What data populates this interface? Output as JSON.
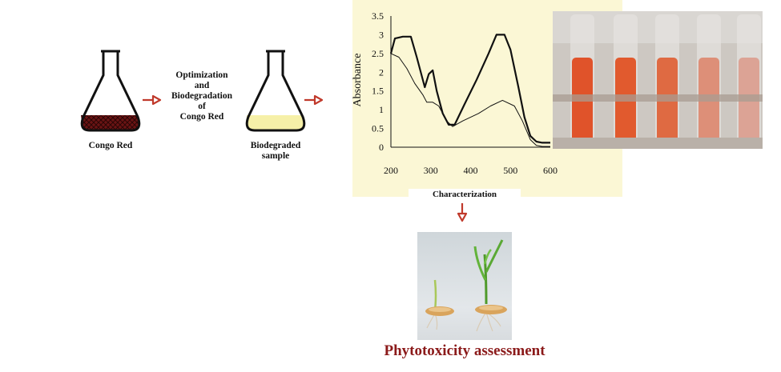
{
  "flow": {
    "congo_red_label": "Congo Red",
    "step_label_lines": [
      "Optimization",
      "and",
      "Biodegradation",
      "of",
      "Congo Red"
    ],
    "biodegraded_label_lines": [
      "Biodegraded",
      "sample"
    ],
    "characterization_label": "Characterization",
    "phytotoxicity_label": "Phytotoxicity assessment"
  },
  "colors": {
    "arrow": "#c0392b",
    "congo_red_liquid": "#6b1414",
    "biodegraded_liquid": "#f6f0a8",
    "chart_bg": "#fbf7d5",
    "phytotoxicity_text": "#8b1a1a"
  },
  "chart_data": {
    "type": "line",
    "ylabel": "Absorbance",
    "xlabel": "",
    "xlim": [
      200,
      600
    ],
    "ylim": [
      0,
      3.5
    ],
    "x_ticks": [
      "200",
      "300",
      "400",
      "500",
      "600"
    ],
    "y_ticks": [
      "0",
      "0.5",
      "1",
      "1.5",
      "2",
      "2.5",
      "3",
      "3.5"
    ],
    "series": [
      {
        "style": "thick",
        "points": [
          [
            200,
            2.5
          ],
          [
            210,
            2.9
          ],
          [
            230,
            2.95
          ],
          [
            250,
            2.95
          ],
          [
            265,
            2.4
          ],
          [
            285,
            1.6
          ],
          [
            295,
            1.95
          ],
          [
            305,
            2.05
          ],
          [
            315,
            1.5
          ],
          [
            330,
            0.9
          ],
          [
            345,
            0.6
          ],
          [
            360,
            0.6
          ],
          [
            385,
            1.15
          ],
          [
            415,
            1.8
          ],
          [
            445,
            2.5
          ],
          [
            465,
            3.0
          ],
          [
            485,
            3.0
          ],
          [
            500,
            2.6
          ],
          [
            520,
            1.6
          ],
          [
            535,
            0.8
          ],
          [
            550,
            0.3
          ],
          [
            565,
            0.15
          ],
          [
            580,
            0.12
          ],
          [
            600,
            0.12
          ]
        ]
      },
      {
        "style": "thin",
        "points": [
          [
            200,
            2.5
          ],
          [
            220,
            2.4
          ],
          [
            240,
            2.1
          ],
          [
            260,
            1.7
          ],
          [
            280,
            1.4
          ],
          [
            290,
            1.2
          ],
          [
            305,
            1.2
          ],
          [
            320,
            1.1
          ],
          [
            340,
            0.7
          ],
          [
            355,
            0.55
          ],
          [
            380,
            0.7
          ],
          [
            420,
            0.9
          ],
          [
            450,
            1.1
          ],
          [
            480,
            1.25
          ],
          [
            510,
            1.1
          ],
          [
            530,
            0.7
          ],
          [
            550,
            0.2
          ],
          [
            565,
            0.05
          ],
          [
            580,
            0.02
          ],
          [
            600,
            0.02
          ]
        ]
      }
    ]
  },
  "tubes": [
    {
      "color": "#e0532a"
    },
    {
      "color": "#e15a2e"
    },
    {
      "color": "#df6a42"
    },
    {
      "color": "#dd8f78"
    },
    {
      "color": "#dca395"
    }
  ]
}
